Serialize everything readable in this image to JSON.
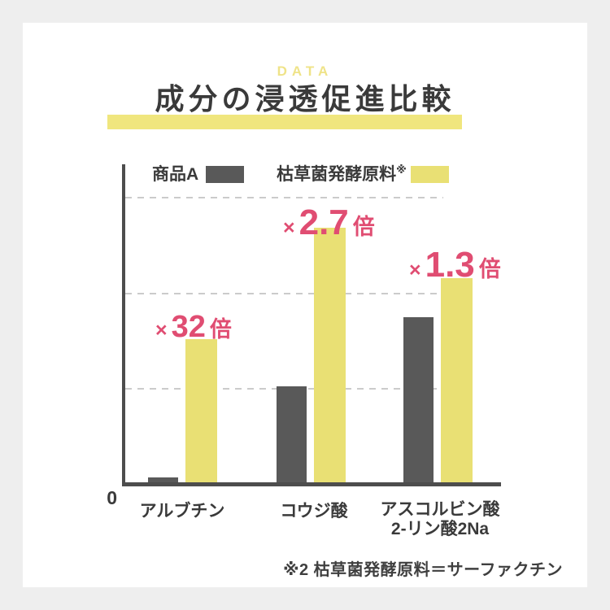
{
  "page": {
    "eyebrow": "DATA",
    "title": "成分の浸透促進比較",
    "footnote": "※2 枯草菌発酵原料＝サーファクチン"
  },
  "axis": {
    "origin_label": "0"
  },
  "legend": {
    "series_a_label": "商品A",
    "series_b_label": "枯草菌発酵原料",
    "series_b_sup": "※"
  },
  "chart_data": {
    "type": "bar",
    "title": "成分の浸透促進比較",
    "categories": [
      "アルブチン",
      "コウジ酸",
      "アスコルビン酸\n2-リン酸2Na"
    ],
    "series": [
      {
        "name": "商品A",
        "color": "#595959",
        "values": [
          0.05,
          1.0,
          1.73
        ]
      },
      {
        "name": "枯草菌発酵原料※",
        "color": "#E9E074",
        "values": [
          1.5,
          2.66,
          2.14
        ]
      }
    ],
    "annotations": [
      {
        "prefix": "×",
        "value": "32",
        "suffix": "倍",
        "applies_to": "アルブチン"
      },
      {
        "prefix": "×",
        "value": "2.7",
        "suffix": "倍",
        "applies_to": "コウジ酸"
      },
      {
        "prefix": "×",
        "value": "1.3",
        "suffix": "倍",
        "applies_to": "アスコルビン酸 2-リン酸2Na"
      }
    ],
    "ylim": [
      0,
      3.32
    ],
    "gridlines": [
      1,
      2,
      3
    ],
    "grid": "dashed-horizontal",
    "legend_position": "top-inside",
    "annotation_color": "#E04D72"
  },
  "colors": {
    "background": "#EEEEEE",
    "card": "#FFFFFF",
    "accent_yellow": "#E9E074",
    "title_highlight": "#F0E67E",
    "bar_dark": "#595959",
    "annotation_pink": "#E04D72",
    "axis": "#4D4D4D",
    "text": "#3A3A3A",
    "gridline": "#CCCCCC"
  }
}
